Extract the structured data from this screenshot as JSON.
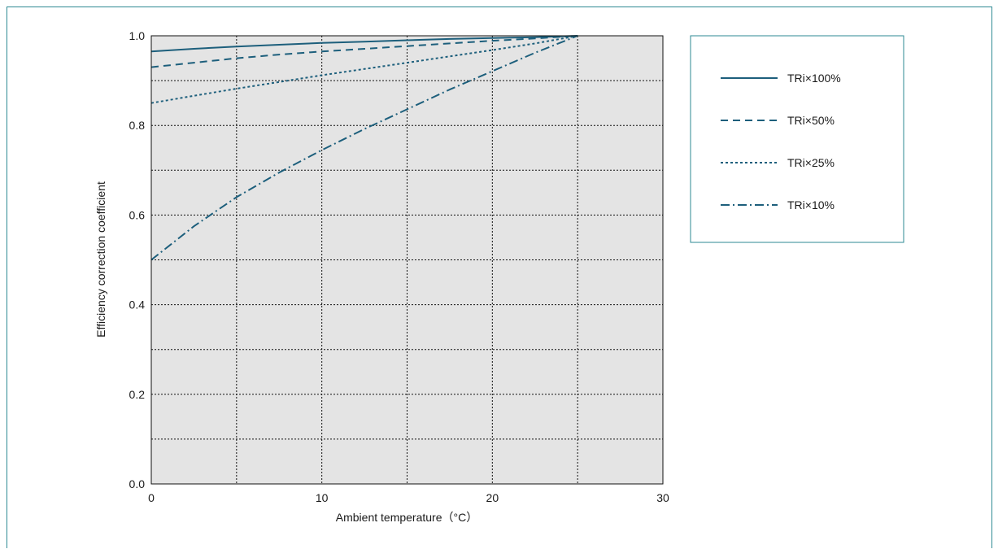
{
  "colors": {
    "frame": "#2e8a93",
    "series": "#1d5f7c",
    "plot_bg": "#e4e4e4",
    "grid": "#111111"
  },
  "chart_data": {
    "type": "line",
    "title": "",
    "xlabel": "Ambient temperature（°C）",
    "ylabel": "Efficiency correction coefficient",
    "xlim": [
      0,
      30
    ],
    "ylim": [
      0,
      1.0
    ],
    "x_ticks": [
      "0",
      "10",
      "20",
      "30"
    ],
    "y_ticks": [
      "0.0",
      "0.2",
      "0.4",
      "0.6",
      "0.8",
      "1.0"
    ],
    "grid": true,
    "legend_position": "right",
    "series": [
      {
        "name": "TRi×100%",
        "style": "solid",
        "x": [
          0,
          2.5,
          5,
          7.5,
          10,
          12.5,
          15,
          17.5,
          20,
          22.5,
          25
        ],
        "y": [
          0.965,
          0.971,
          0.976,
          0.98,
          0.984,
          0.987,
          0.99,
          0.993,
          0.995,
          0.997,
          1.0
        ]
      },
      {
        "name": "TRi×50%",
        "style": "dashed",
        "x": [
          0,
          2.5,
          5,
          7.5,
          10,
          12.5,
          15,
          17.5,
          20,
          22.5,
          25
        ],
        "y": [
          0.93,
          0.94,
          0.95,
          0.958,
          0.965,
          0.971,
          0.977,
          0.983,
          0.989,
          0.994,
          1.0
        ]
      },
      {
        "name": "TRi×25%",
        "style": "dotted",
        "x": [
          0,
          2.5,
          5,
          7.5,
          10,
          12.5,
          15,
          17.5,
          20,
          22.5,
          25
        ],
        "y": [
          0.85,
          0.866,
          0.882,
          0.897,
          0.912,
          0.926,
          0.94,
          0.954,
          0.968,
          0.983,
          1.0
        ]
      },
      {
        "name": "TRi×10%",
        "style": "dashdot",
        "x": [
          0,
          2.5,
          5,
          7.5,
          10,
          12.5,
          15,
          17.5,
          20,
          22.5,
          25
        ],
        "y": [
          0.5,
          0.575,
          0.64,
          0.695,
          0.745,
          0.792,
          0.836,
          0.88,
          0.921,
          0.962,
          1.0
        ]
      }
    ]
  }
}
